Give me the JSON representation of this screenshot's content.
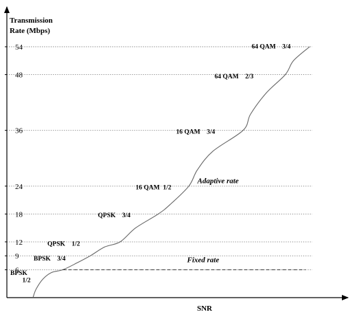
{
  "chart_data": {
    "type": "line",
    "ylabel_lines": [
      "Transmission",
      "Rate (Mbps)"
    ],
    "xlabel": "SNR",
    "y_ticks": [
      6,
      9,
      12,
      18,
      24,
      36,
      48,
      54
    ],
    "ylim": [
      0,
      58
    ],
    "xlim": [
      0,
      100
    ],
    "grid": "dotted horizontal lines at y ticks",
    "series": [
      {
        "name": "Adaptive rate",
        "style": "solid",
        "points": [
          {
            "x": 7.6,
            "y": 0
          },
          {
            "x": 8.5,
            "y": 1.8
          },
          {
            "x": 10.5,
            "y": 4.0
          },
          {
            "x": 13.0,
            "y": 5.4
          },
          {
            "x": 16.3,
            "y": 6.0
          },
          {
            "x": 20.5,
            "y": 7.5
          },
          {
            "x": 24.3,
            "y": 9.0
          },
          {
            "x": 28.5,
            "y": 10.9
          },
          {
            "x": 33.0,
            "y": 12.0
          },
          {
            "x": 37.5,
            "y": 15.0
          },
          {
            "x": 44.1,
            "y": 18.0
          },
          {
            "x": 47.5,
            "y": 20.0
          },
          {
            "x": 53.0,
            "y": 24.0
          },
          {
            "x": 55.5,
            "y": 27.5
          },
          {
            "x": 60.0,
            "y": 31.5
          },
          {
            "x": 68.8,
            "y": 36.0
          },
          {
            "x": 71.0,
            "y": 39.5
          },
          {
            "x": 75.5,
            "y": 44.0
          },
          {
            "x": 81.1,
            "y": 48.0
          },
          {
            "x": 83.5,
            "y": 51.0
          },
          {
            "x": 88.2,
            "y": 54.0
          }
        ]
      },
      {
        "name": "Fixed rate",
        "style": "dashed",
        "points": [
          {
            "x": 16.3,
            "y": 6.0
          },
          {
            "x": 87.0,
            "y": 6.0
          }
        ]
      }
    ],
    "annotations": [
      {
        "text": "BPSK",
        "x": 1.0,
        "y": 4.9
      },
      {
        "text": "1/2",
        "x": 4.5,
        "y": 3.3
      },
      {
        "text": "BPSK    3/4",
        "x": 7.8,
        "y": 8.0
      },
      {
        "text": "QPSK    1/2",
        "x": 11.8,
        "y": 11.2
      },
      {
        "text": "QPSK    3/4",
        "x": 26.5,
        "y": 17.3
      },
      {
        "text": "16 QAM  1/2",
        "x": 37.5,
        "y": 23.3
      },
      {
        "text": "16 QAM    3/4",
        "x": 49.3,
        "y": 35.3
      },
      {
        "text": "64 QAM    2/3",
        "x": 60.5,
        "y": 47.2
      },
      {
        "text": "64 QAM    3/4",
        "x": 71.3,
        "y": 53.6
      }
    ],
    "series_labels": [
      {
        "text": "Adaptive rate",
        "x": 55.5,
        "y": 24.6
      },
      {
        "text": "Fixed rate",
        "x": 52.5,
        "y": 7.6
      }
    ]
  }
}
